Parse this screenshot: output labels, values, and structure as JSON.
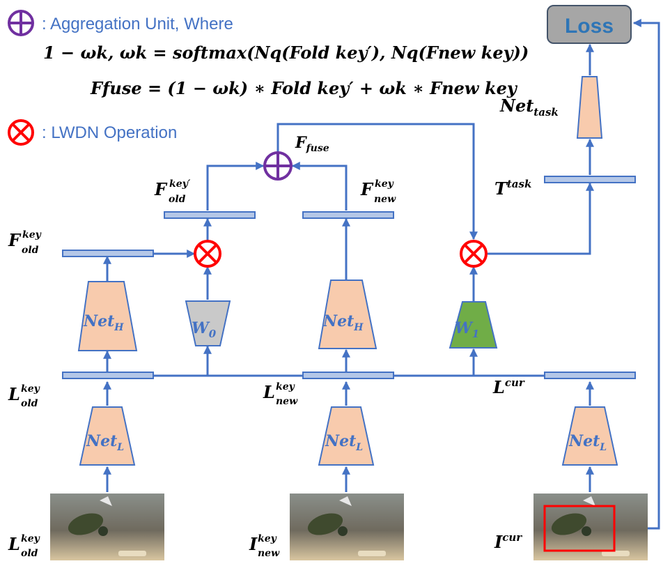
{
  "legend": {
    "aggregation_label": ": Aggregation Unit, Where",
    "formula_line1": "1 − ωk, ωk = softmax(Nq(Fold key′), Nq(Fnew key))",
    "formula_line2": "Ffuse = (1 − ωk) ∗ Fold key′ + ωk ∗ Fnew key",
    "lwdn_label": ": LWDN Operation"
  },
  "nodes": {
    "loss": "Loss",
    "net_task_base": "Net",
    "net_task_sub": "task",
    "net_h_base": "Net",
    "net_h_sub": "H",
    "net_l_base": "Net",
    "net_l_sub": "L",
    "w0_base": "W",
    "w0_sub": "0",
    "w1_base": "W",
    "w1_sub": "1"
  },
  "labels": {
    "f_fuse": {
      "base": "F",
      "sub": "fuse"
    },
    "f_old_key_prime": {
      "base": "F",
      "sup": "key′",
      "sub": "old"
    },
    "f_new_key": {
      "base": "F",
      "sup": "key",
      "sub": "new"
    },
    "f_old_key": {
      "base": "F",
      "sup": "key",
      "sub": "old"
    },
    "t_task": {
      "base": "T",
      "sup": "task"
    },
    "l_old_key": {
      "base": "L",
      "sup": "key",
      "sub": "old"
    },
    "l_new_key": {
      "base": "L",
      "sup": "key",
      "sub": "new"
    },
    "l_cur": {
      "base": "L",
      "sup": "cur"
    },
    "i_old_key": {
      "base": "L",
      "sup": "key",
      "sub": "old"
    },
    "i_new_key": {
      "base": "I",
      "sup": "key",
      "sub": "new"
    },
    "i_cur": {
      "base": "I",
      "sup": "cur"
    }
  },
  "colors": {
    "line": "#4472c4",
    "aggregation_unit": "#7030a0",
    "lwdn_operation": "#ff0000",
    "net_fill": "#f8cbad",
    "w0_fill": "#c9c9c9",
    "w1_fill": "#70ad47",
    "feature_fill": "#b4c7e7",
    "loss_fill": "#a6a6a6"
  }
}
